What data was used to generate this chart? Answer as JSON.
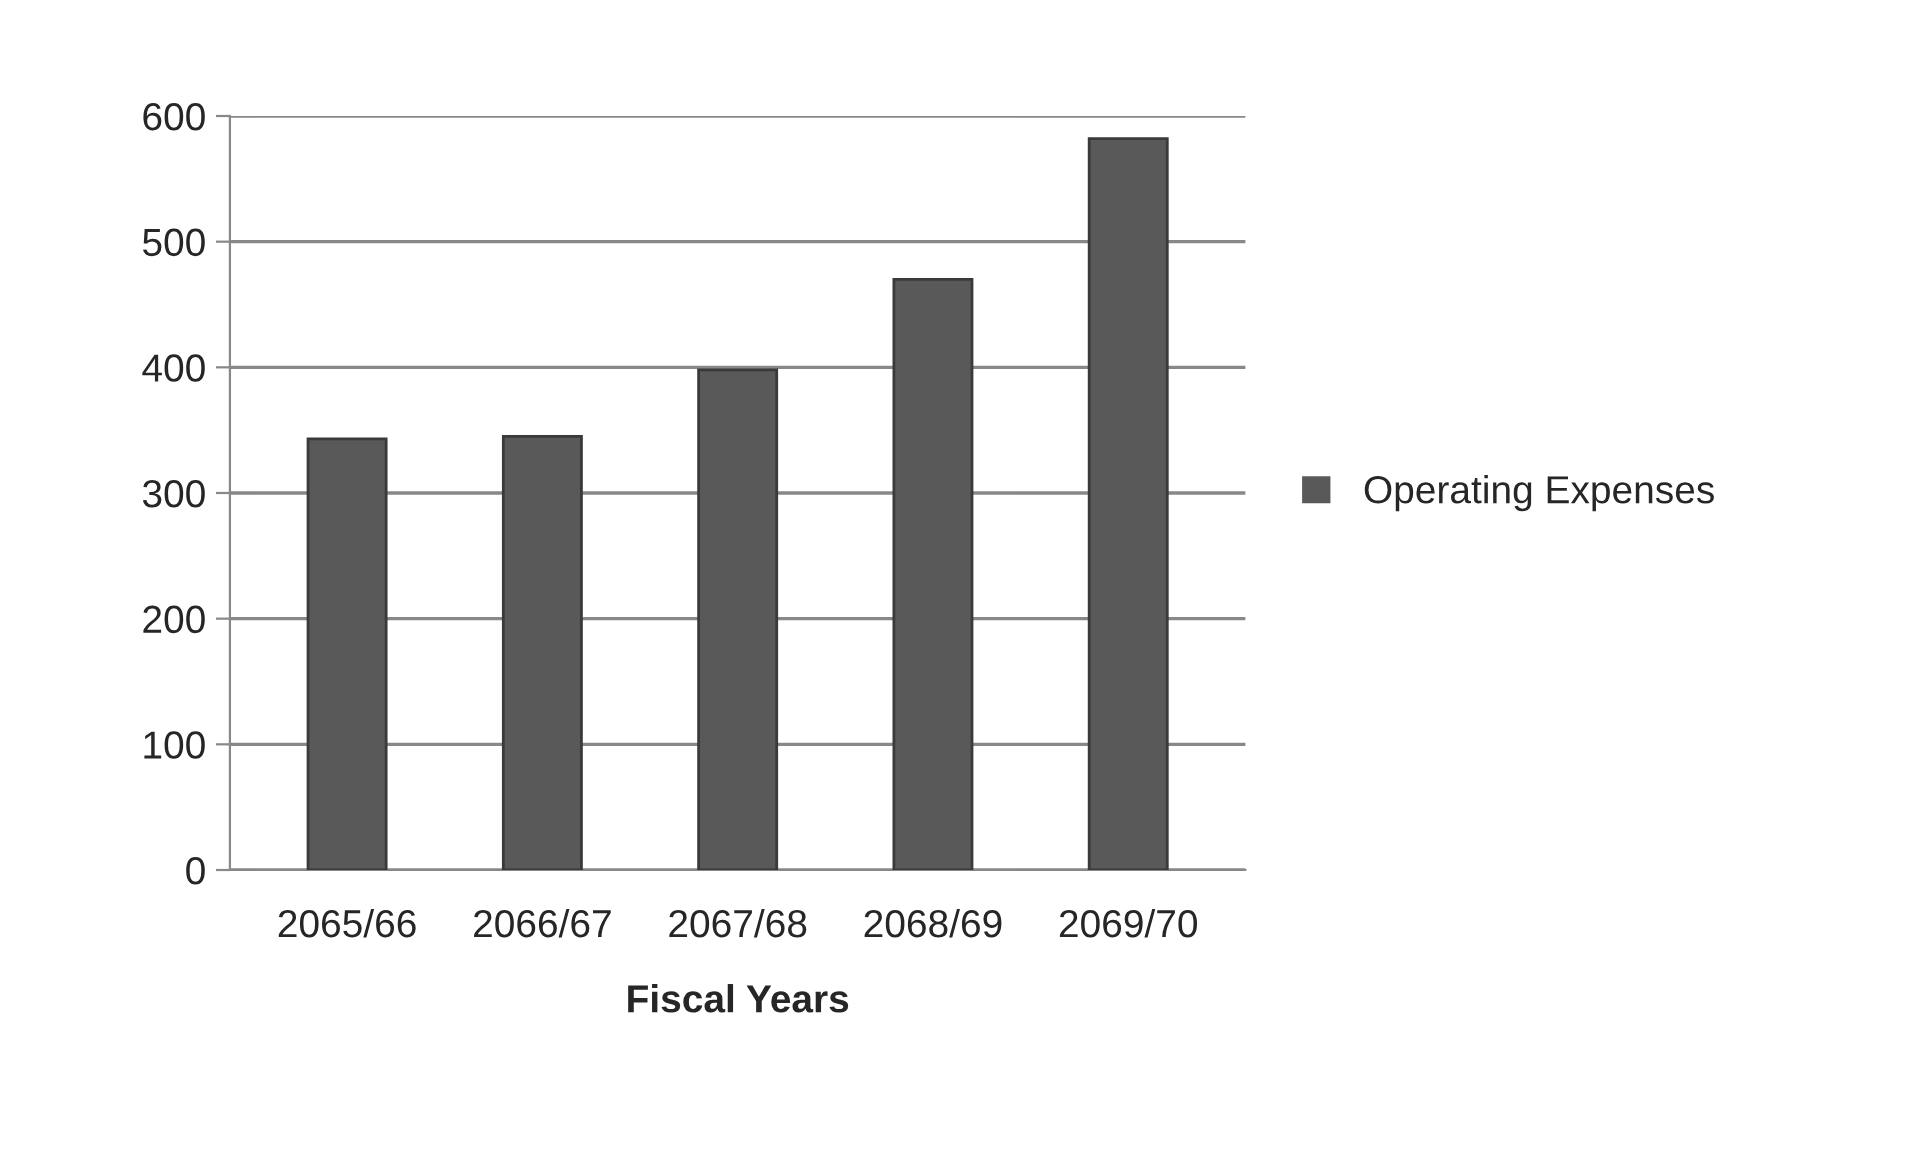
{
  "chart_data": {
    "type": "bar",
    "xlabel": "Fiscal Years",
    "categories": [
      "2065/66",
      "2066/67",
      "2067/68",
      "2068/69",
      "2069/70"
    ],
    "series": [
      {
        "name": "Operating Expenses",
        "color": "#595959",
        "values": [
          343,
          345,
          398,
          470,
          582
        ]
      }
    ],
    "ylim": [
      0,
      600
    ],
    "yticks": [
      0,
      100,
      200,
      300,
      400,
      500,
      600
    ],
    "grid": "y",
    "legend": "right"
  }
}
